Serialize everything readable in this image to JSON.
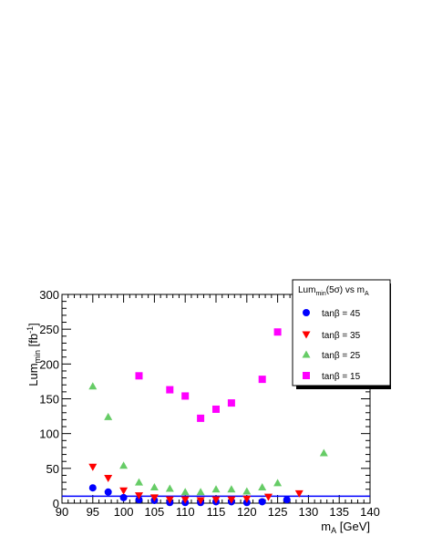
{
  "chart_data": {
    "type": "scatter",
    "title": "",
    "xlabel": {
      "base": "m",
      "sub": "A",
      "rest": " [GeV]"
    },
    "ylabel": {
      "base": "Lum",
      "sub": "min",
      "mid": " [fb",
      "sup": "-1",
      "end": "]"
    },
    "xlim": [
      90,
      140
    ],
    "ylim": [
      0,
      300
    ],
    "x_ticks": [
      "90",
      "95",
      "100",
      "105",
      "110",
      "115",
      "120",
      "125",
      "130",
      "135",
      "140"
    ],
    "y_ticks": [
      "0",
      "50",
      "100",
      "150",
      "200",
      "250",
      "300"
    ],
    "legend": {
      "title": {
        "base": "Lum",
        "sub": "min",
        "mid": "(5σ) vs m",
        "sub2": "A"
      },
      "placement": "top-right"
    },
    "reference_line": {
      "y": 10,
      "color": "#0000ff"
    },
    "series": [
      {
        "name": "tanβ = 45",
        "marker": "circle",
        "color": "#0000ff",
        "x": [
          95,
          97.5,
          100,
          102.5,
          105,
          107.5,
          110,
          112.5,
          115,
          117.5,
          120,
          122.5,
          126.5
        ],
        "y": [
          22,
          16,
          8,
          5,
          4,
          1,
          1,
          1,
          2,
          2,
          1,
          2,
          5
        ]
      },
      {
        "name": "tanβ = 35",
        "marker": "triangle-down",
        "color": "#ff0000",
        "x": [
          95,
          97.5,
          100,
          102.5,
          105,
          107.5,
          110,
          112.5,
          115,
          117.5,
          120,
          123.5,
          128.5
        ],
        "y": [
          52,
          36,
          18,
          11,
          8,
          5,
          5,
          4,
          5,
          5,
          6,
          9,
          14
        ]
      },
      {
        "name": "tanβ = 25",
        "marker": "triangle-up",
        "color": "#66cc66",
        "x": [
          95,
          97.5,
          100,
          102.5,
          105,
          107.5,
          110,
          112.5,
          115,
          117.5,
          120,
          122.5,
          125,
          132.5
        ],
        "y": [
          168,
          124,
          54,
          30,
          23,
          21,
          16,
          16,
          20,
          20,
          17,
          23,
          29,
          72
        ]
      },
      {
        "name": "tanβ = 15",
        "marker": "square",
        "color": "#ff00ff",
        "x": [
          102.5,
          107.5,
          110,
          112.5,
          115,
          117.5,
          122.5,
          125
        ],
        "y": [
          183,
          163,
          154,
          122,
          135,
          144,
          178,
          246
        ]
      }
    ]
  }
}
